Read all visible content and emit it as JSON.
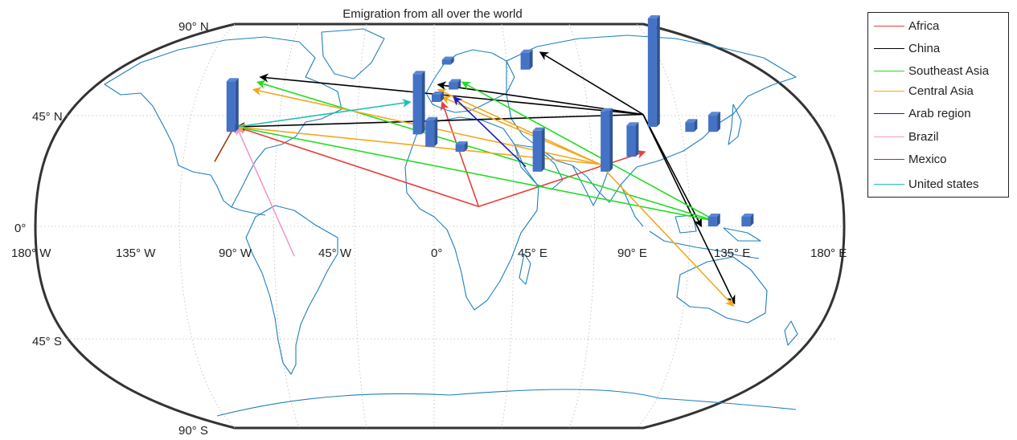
{
  "title": "Emigration from all over the world",
  "graticule_labels": {
    "lat": [
      "90° N",
      "45° N",
      "0°",
      "45° S",
      "90° S"
    ],
    "lon": [
      "180° W",
      "135° W",
      "90° W",
      "45° W",
      "0°",
      "45° E",
      "90° E",
      "135° E",
      "180° E"
    ]
  },
  "legend": [
    {
      "label": "Africa",
      "color": "#e8403a"
    },
    {
      "label": "China",
      "color": "#000000"
    },
    {
      "label": "Southeast Asia",
      "color": "#22dd22"
    },
    {
      "label": "Central Asia",
      "color": "#f2a81e"
    },
    {
      "label": "Arab region",
      "color": "#1a1ac8"
    },
    {
      "label": "Brazil",
      "color": "#f39ac8"
    },
    {
      "label": "Mexico",
      "color": "#9a3c0a"
    },
    {
      "label": "United states",
      "color": "#21bfb0"
    }
  ],
  "chart_data": {
    "type": "flow-map",
    "title": "Emigration from all over the world",
    "projection": "Robinson",
    "series": [
      {
        "name": "Africa",
        "color": "#e8403a",
        "flows": [
          {
            "from": [
              20,
              8
            ],
            "to": [
              4,
              50
            ]
          },
          {
            "from": [
              20,
              8
            ],
            "to": [
              -95,
              40
            ]
          },
          {
            "from": [
              20,
              8
            ],
            "to": [
              98,
              30
            ]
          }
        ]
      },
      {
        "name": "China",
        "color": "#000000",
        "flows": [
          {
            "from": [
              103,
              45
            ],
            "to": [
              -95,
              60
            ]
          },
          {
            "from": [
              103,
              45
            ],
            "to": [
              -95,
              40
            ]
          },
          {
            "from": [
              103,
              45
            ],
            "to": [
              2,
              57
            ]
          },
          {
            "from": [
              103,
              45
            ],
            "to": [
              64,
              70
            ]
          },
          {
            "from": [
              103,
              45
            ],
            "to": [
              120,
              0
            ]
          },
          {
            "from": [
              103,
              45
            ],
            "to": [
              140,
              -31
            ]
          }
        ]
      },
      {
        "name": "Southeast Asia",
        "color": "#22dd22",
        "flows": [
          {
            "from": [
              127,
              2
            ],
            "to": [
              -95,
              40
            ]
          },
          {
            "from": [
              127,
              2
            ],
            "to": [
              -95,
              58
            ]
          },
          {
            "from": [
              127,
              2
            ],
            "to": [
              15,
              58
            ]
          }
        ]
      },
      {
        "name": "Central Asia",
        "color": "#f2a81e",
        "flows": [
          {
            "from": [
              76,
              25
            ],
            "to": [
              -95,
              40
            ]
          },
          {
            "from": [
              76,
              25
            ],
            "to": [
              -95,
              55
            ]
          },
          {
            "from": [
              76,
              25
            ],
            "to": [
              2,
              55
            ]
          },
          {
            "from": [
              76,
              25
            ],
            "to": [
              4,
              52
            ]
          },
          {
            "from": [
              76,
              25
            ],
            "to": [
              140,
              -32
            ]
          }
        ]
      },
      {
        "name": "Arab region",
        "color": "#1a1ac8",
        "flows": [
          {
            "from": [
              42,
              24
            ],
            "to": [
              10,
              52
            ]
          }
        ]
      },
      {
        "name": "Brazil",
        "color": "#f39ac8",
        "flows": [
          {
            "from": [
              -63,
              -12
            ],
            "to": [
              -95,
              40
            ]
          }
        ]
      },
      {
        "name": "Mexico",
        "color": "#9a3c0a",
        "flows": [
          {
            "from": [
              -101,
              26
            ],
            "to": [
              -96,
              41
            ]
          }
        ]
      },
      {
        "name": "United states",
        "color": "#21bfb0",
        "flows": [
          {
            "from": [
              -95,
              40
            ],
            "to": [
              -12,
              50
            ]
          }
        ]
      }
    ],
    "bars": [
      {
        "lon": -97,
        "lat": 38,
        "value": 21
      },
      {
        "lon": -8,
        "lat": 37,
        "value": 25
      },
      {
        "lon": -2,
        "lat": 32,
        "value": 11
      },
      {
        "lon": 1,
        "lat": 50,
        "value": 3
      },
      {
        "lon": 7,
        "lat": 65,
        "value": 2
      },
      {
        "lon": 10,
        "lat": 55,
        "value": 3
      },
      {
        "lon": 12,
        "lat": 30,
        "value": 3
      },
      {
        "lon": 47,
        "lat": 22,
        "value": 17
      },
      {
        "lon": 51,
        "lat": 63,
        "value": 7
      },
      {
        "lon": 78,
        "lat": 22,
        "value": 25
      },
      {
        "lon": 91,
        "lat": 28,
        "value": 13
      },
      {
        "lon": 105,
        "lat": 40,
        "value": 45
      },
      {
        "lon": 122,
        "lat": 38,
        "value": 4
      },
      {
        "lon": 133,
        "lat": 38,
        "value": 7
      },
      {
        "lon": 125,
        "lat": 0,
        "value": 4
      },
      {
        "lon": 140,
        "lat": 0,
        "value": 4
      }
    ]
  }
}
